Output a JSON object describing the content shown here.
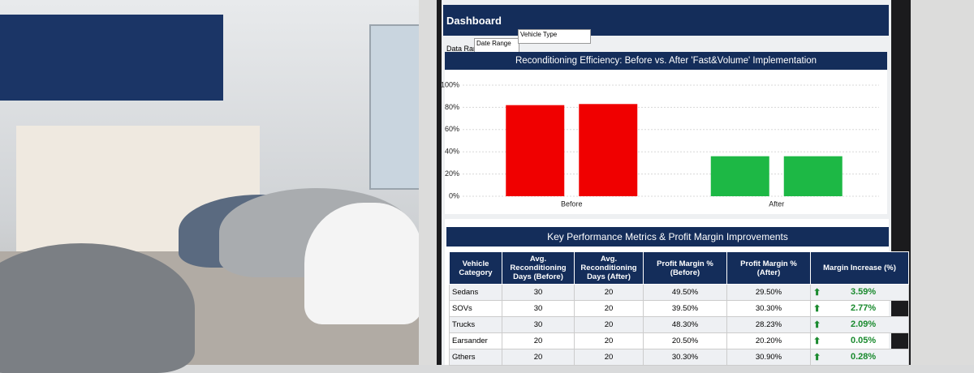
{
  "dashboard": {
    "title": "Dashboard"
  },
  "filters": {
    "label": "Data Range:",
    "date": "Date Range",
    "vehicle": "Vehicle Type"
  },
  "chart_data": {
    "type": "bar",
    "title": "Reconditioning Efficiency: Before vs. After 'Fast&Volume' Implementation",
    "categories": [
      "Before",
      "After"
    ],
    "series": [
      {
        "values": [
          82,
          36
        ]
      },
      {
        "values": [
          83,
          36
        ]
      }
    ],
    "colors": [
      "#f00000",
      "#1db845"
    ],
    "ylim": [
      0,
      100
    ],
    "yticks": [
      {
        "value": 0,
        "label": "0%"
      },
      {
        "value": 20,
        "label": "20%"
      },
      {
        "value": 40,
        "label": "40%"
      },
      {
        "value": 60,
        "label": "60%"
      },
      {
        "value": 80,
        "label": "80%"
      },
      {
        "value": 100,
        "label": "100%"
      }
    ],
    "grid": true
  },
  "table": {
    "title": "Key Performance Metrics & Profit Margin Improvements",
    "headers": [
      "Vehicle Category",
      "Avg. Reconditioning Days (Before)",
      "Avg. Reconditioning Days (After)",
      "Profit Margin % (Before)",
      "Profit Margin % (After)",
      "Margin Increase (%)"
    ],
    "rows": [
      [
        "Sedans",
        "30",
        "20",
        "49.50%",
        "29.50%",
        "3.59%"
      ],
      [
        "SOVs",
        "30",
        "20",
        "39.50%",
        "30.30%",
        "2.77%"
      ],
      [
        "Trucks",
        "30",
        "20",
        "48.30%",
        "28.23%",
        "2.09%"
      ],
      [
        "Earsander",
        "20",
        "20",
        "20.50%",
        "20.20%",
        "0.05%"
      ],
      [
        "Gthers",
        "20",
        "20",
        "30.30%",
        "30.90%",
        "0.28%"
      ]
    ]
  }
}
